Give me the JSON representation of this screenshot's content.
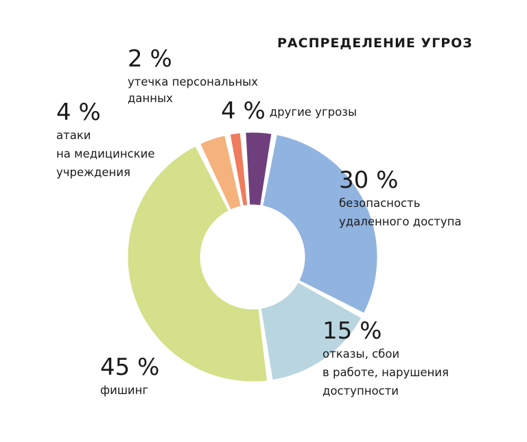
{
  "chart_data": {
    "type": "pie",
    "title": "РАСПРЕДЕЛЕНИЕ УГРОЗ",
    "slices": [
      {
        "label_lines": [
          "безопасность",
          "удаленного доступа"
        ],
        "value": 30,
        "value_label": "30 %",
        "color": "#91b3df"
      },
      {
        "label_lines": [
          "отказы, сбои",
          "в работе, нарушения",
          "доступности"
        ],
        "value": 15,
        "value_label": "15 %",
        "color": "#b9d5df"
      },
      {
        "label_lines": [
          "фишинг"
        ],
        "value": 45,
        "value_label": "45 %",
        "color": "#d4e08a"
      },
      {
        "label_lines": [
          "атаки",
          "на медицинские",
          "учреждения"
        ],
        "value": 4,
        "value_label": "4 %",
        "color": "#f5b27c"
      },
      {
        "label_lines": [
          "утечка персональных",
          "данных"
        ],
        "value": 2,
        "value_label": "2 %",
        "color": "#ef7c5d"
      },
      {
        "label_lines": [
          "другие угрозы"
        ],
        "value": 4,
        "value_label": "4 %",
        "color": "#6e3f7c"
      }
    ]
  }
}
